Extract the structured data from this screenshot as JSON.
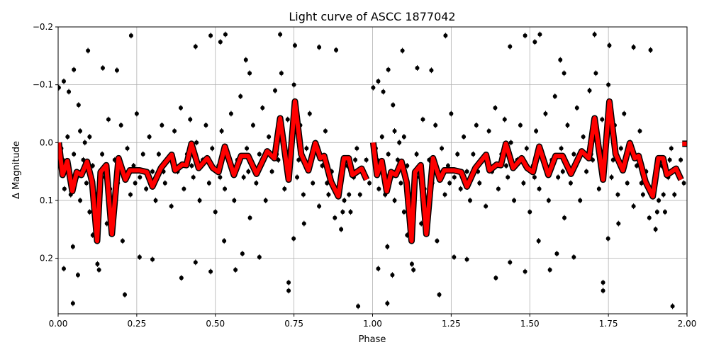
{
  "chart_data": {
    "type": "scatter",
    "title": "Light curve of ASCC 1877042",
    "xlabel": "Phase",
    "ylabel": "Δ Magnitude",
    "xlim": [
      0,
      2
    ],
    "ylim": [
      0.296,
      -0.2
    ],
    "y_inverted": true,
    "grid": true,
    "xticks": [
      0,
      0.25,
      0.5,
      0.75,
      1.0,
      1.25,
      1.5,
      1.75,
      2.0
    ],
    "xtick_labels": [
      "0.00",
      "0.25",
      "0.50",
      "0.75",
      "1.00",
      "1.25",
      "1.50",
      "1.75",
      "2.00"
    ],
    "yticks": [
      -0.2,
      -0.1,
      0.0,
      0.1,
      0.2
    ],
    "ytick_labels": [
      "−0.2",
      "−0.1",
      "0.0",
      "0.1",
      "0.2"
    ],
    "colors": {
      "points": "#000000",
      "curve": "#ff0000",
      "curve_edge": "#000000",
      "grid": "#b0b0b0"
    },
    "phase_repeat": [
      0,
      1
    ],
    "points": [
      [
        0.002,
        -0.095
      ],
      [
        0.018,
        -0.106
      ],
      [
        0.034,
        -0.088
      ],
      [
        0.05,
        -0.126
      ],
      [
        0.065,
        -0.065
      ],
      [
        0.095,
        -0.159
      ],
      [
        0.142,
        -0.129
      ],
      [
        0.187,
        -0.125
      ],
      [
        0.232,
        -0.185
      ],
      [
        0.018,
        0.218
      ],
      [
        0.047,
        0.278
      ],
      [
        0.063,
        0.229
      ],
      [
        0.047,
        0.18
      ],
      [
        0.212,
        0.263
      ],
      [
        0.259,
        0.198
      ],
      [
        0.3,
        0.202
      ],
      [
        0.392,
        0.234
      ],
      [
        0.437,
        -0.166
      ],
      [
        0.485,
        -0.185
      ],
      [
        0.516,
        -0.174
      ],
      [
        0.532,
        -0.187
      ],
      [
        0.485,
        0.223
      ],
      [
        0.437,
        0.207
      ],
      [
        0.564,
        0.22
      ],
      [
        0.586,
        0.192
      ],
      [
        0.597,
        -0.143
      ],
      [
        0.609,
        -0.12
      ],
      [
        0.706,
        -0.187
      ],
      [
        0.753,
        -0.168
      ],
      [
        0.733,
        0.242
      ],
      [
        0.733,
        0.256
      ],
      [
        0.83,
        -0.165
      ],
      [
        0.884,
        -0.16
      ],
      [
        0.954,
        0.283
      ],
      [
        0.64,
        0.198
      ],
      [
        0.749,
        0.166
      ],
      [
        0.782,
        0.14
      ],
      [
        0.528,
        0.17
      ],
      [
        0.125,
        0.21
      ],
      [
        0.13,
        0.22
      ],
      [
        0.205,
        0.17
      ],
      [
        0.155,
        0.14
      ],
      [
        0.11,
        0.16
      ],
      [
        0.01,
        0.01
      ],
      [
        0.01,
        0.05
      ],
      [
        0.02,
        0.08
      ],
      [
        0.03,
        -0.01
      ],
      [
        0.03,
        0.04
      ],
      [
        0.04,
        0.09
      ],
      [
        0.05,
        0.02
      ],
      [
        0.06,
        0.06
      ],
      [
        0.07,
        -0.02
      ],
      [
        0.07,
        0.1
      ],
      [
        0.08,
        0.03
      ],
      [
        0.09,
        0.07
      ],
      [
        0.1,
        -0.01
      ],
      [
        0.1,
        0.12
      ],
      [
        0.11,
        0.04
      ],
      [
        0.12,
        0.09
      ],
      [
        0.14,
        0.02
      ],
      [
        0.15,
        0.06
      ],
      [
        0.16,
        -0.04
      ],
      [
        0.17,
        0.1
      ],
      [
        0.18,
        0.03
      ],
      [
        0.19,
        0.07
      ],
      [
        0.2,
        -0.03
      ],
      [
        0.21,
        0.05
      ],
      [
        0.22,
        0.01
      ],
      [
        0.23,
        0.09
      ],
      [
        0.24,
        0.04
      ],
      [
        0.25,
        -0.05
      ],
      [
        0.26,
        0.06
      ],
      [
        0.27,
        0.02
      ],
      [
        0.28,
        0.08
      ],
      [
        0.29,
        -0.01
      ],
      [
        0.3,
        0.05
      ],
      [
        0.31,
        0.1
      ],
      [
        0.32,
        0.02
      ],
      [
        0.33,
        -0.03
      ],
      [
        0.34,
        0.07
      ],
      [
        0.35,
        0.03
      ],
      [
        0.36,
        0.11
      ],
      [
        0.37,
        -0.02
      ],
      [
        0.38,
        0.05
      ],
      [
        0.39,
        -0.06
      ],
      [
        0.4,
        0.08
      ],
      [
        0.41,
        0.02
      ],
      [
        0.42,
        -0.04
      ],
      [
        0.43,
        0.06
      ],
      [
        0.44,
        0.0
      ],
      [
        0.45,
        0.1
      ],
      [
        0.46,
        0.03
      ],
      [
        0.47,
        -0.03
      ],
      [
        0.48,
        0.07
      ],
      [
        0.49,
        0.01
      ],
      [
        0.5,
        0.12
      ],
      [
        0.51,
        0.04
      ],
      [
        0.52,
        -0.02
      ],
      [
        0.53,
        0.08
      ],
      [
        0.54,
        0.02
      ],
      [
        0.55,
        -0.05
      ],
      [
        0.56,
        0.1
      ],
      [
        0.57,
        0.03
      ],
      [
        0.58,
        -0.08
      ],
      [
        0.59,
        0.06
      ],
      [
        0.6,
        0.01
      ],
      [
        0.61,
        0.13
      ],
      [
        0.62,
        -0.03
      ],
      [
        0.63,
        0.07
      ],
      [
        0.64,
        0.02
      ],
      [
        0.65,
        -0.06
      ],
      [
        0.66,
        0.1
      ],
      [
        0.67,
        -0.01
      ],
      [
        0.68,
        0.05
      ],
      [
        0.69,
        -0.09
      ],
      [
        0.7,
        0.03
      ],
      [
        0.71,
        -0.12
      ],
      [
        0.72,
        0.08
      ],
      [
        0.73,
        -0.04
      ],
      [
        0.74,
        0.02
      ],
      [
        0.75,
        -0.1
      ],
      [
        0.76,
        0.06
      ],
      [
        0.77,
        -0.03
      ],
      [
        0.78,
        0.09
      ],
      [
        0.79,
        0.01
      ],
      [
        0.8,
        -0.05
      ],
      [
        0.81,
        0.07
      ],
      [
        0.82,
        0.0
      ],
      [
        0.83,
        0.11
      ],
      [
        0.84,
        0.04
      ],
      [
        0.85,
        -0.02
      ],
      [
        0.86,
        0.09
      ],
      [
        0.87,
        0.05
      ],
      [
        0.88,
        0.13
      ],
      [
        0.89,
        0.08
      ],
      [
        0.9,
        0.15
      ],
      [
        0.91,
        0.1
      ],
      [
        0.92,
        0.04
      ],
      [
        0.93,
        0.12
      ],
      [
        0.94,
        0.06
      ],
      [
        0.95,
        0.01
      ],
      [
        0.96,
        0.09
      ],
      [
        0.97,
        0.05
      ],
      [
        0.98,
        0.03
      ],
      [
        0.99,
        0.07
      ],
      [
        0.015,
        0.03
      ],
      [
        0.045,
        0.06
      ],
      [
        0.085,
        0.0
      ],
      [
        0.135,
        0.05
      ],
      [
        0.165,
        0.08
      ],
      [
        0.245,
        0.07
      ],
      [
        0.335,
        0.05
      ],
      [
        0.425,
        0.04
      ],
      [
        0.515,
        0.06
      ],
      [
        0.605,
        0.05
      ],
      [
        0.695,
        0.02
      ],
      [
        0.765,
        0.03
      ],
      [
        0.855,
        0.07
      ],
      [
        0.905,
        0.12
      ],
      [
        0.925,
        0.09
      ],
      [
        0.945,
        0.03
      ]
    ],
    "curve": [
      [
        0.002,
        0.0
      ],
      [
        0.014,
        0.056
      ],
      [
        0.029,
        0.032
      ],
      [
        0.045,
        0.084
      ],
      [
        0.059,
        0.051
      ],
      [
        0.074,
        0.056
      ],
      [
        0.092,
        0.033
      ],
      [
        0.108,
        0.068
      ],
      [
        0.124,
        0.17
      ],
      [
        0.135,
        0.051
      ],
      [
        0.153,
        0.039
      ],
      [
        0.171,
        0.158
      ],
      [
        0.192,
        0.027
      ],
      [
        0.214,
        0.064
      ],
      [
        0.228,
        0.048
      ],
      [
        0.259,
        0.048
      ],
      [
        0.282,
        0.051
      ],
      [
        0.3,
        0.076
      ],
      [
        0.327,
        0.044
      ],
      [
        0.34,
        0.035
      ],
      [
        0.361,
        0.021
      ],
      [
        0.372,
        0.048
      ],
      [
        0.395,
        0.038
      ],
      [
        0.408,
        0.039
      ],
      [
        0.424,
        0.002
      ],
      [
        0.447,
        0.044
      ],
      [
        0.474,
        0.027
      ],
      [
        0.492,
        0.044
      ],
      [
        0.51,
        0.051
      ],
      [
        0.53,
        0.007
      ],
      [
        0.559,
        0.056
      ],
      [
        0.582,
        0.023
      ],
      [
        0.604,
        0.023
      ],
      [
        0.631,
        0.054
      ],
      [
        0.665,
        0.015
      ],
      [
        0.688,
        0.027
      ],
      [
        0.706,
        -0.042
      ],
      [
        0.733,
        0.064
      ],
      [
        0.753,
        -0.071
      ],
      [
        0.773,
        0.02
      ],
      [
        0.796,
        0.048
      ],
      [
        0.818,
        0.001
      ],
      [
        0.834,
        0.027
      ],
      [
        0.846,
        0.023
      ],
      [
        0.868,
        0.068
      ],
      [
        0.891,
        0.093
      ],
      [
        0.909,
        0.027
      ],
      [
        0.924,
        0.027
      ],
      [
        0.936,
        0.056
      ],
      [
        0.965,
        0.045
      ],
      [
        0.981,
        0.064
      ]
    ],
    "curve_tail": [
      [
        1.985,
        0.002
      ],
      [
        2.0,
        0.002
      ]
    ]
  }
}
